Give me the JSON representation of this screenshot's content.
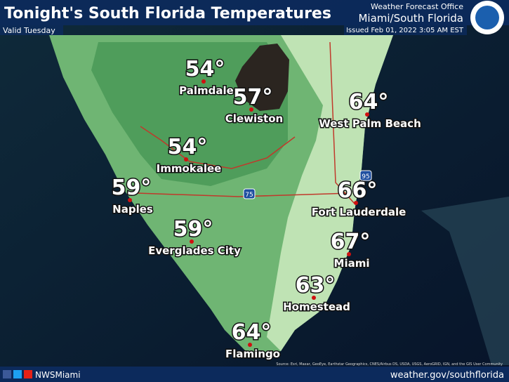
{
  "header": {
    "title": "Tonight's South Florida Temperatures",
    "subtitle": "Valid Tuesday",
    "office": "Weather Forecast Office",
    "region": "Miami/South Florida",
    "issued": "Issued Feb 01, 2022 3:05 AM EST"
  },
  "cities": [
    {
      "name": "Palmdale",
      "temp": "54°"
    },
    {
      "name": "Clewiston",
      "temp": "57°"
    },
    {
      "name": "West Palm Beach",
      "temp": "64°"
    },
    {
      "name": "Immokalee",
      "temp": "54°"
    },
    {
      "name": "Naples",
      "temp": "59°"
    },
    {
      "name": "Fort Lauderdale",
      "temp": "66°"
    },
    {
      "name": "Everglades City",
      "temp": "59°"
    },
    {
      "name": "Miami",
      "temp": "67°"
    },
    {
      "name": "Homestead",
      "temp": "63°"
    },
    {
      "name": "Flamingo",
      "temp": "64°"
    }
  ],
  "highways": [
    "95",
    "75"
  ],
  "footer": {
    "social": "NWSMiami",
    "url": "weather.gov/southflorida",
    "attribution": "Source: Esri, Maxar, GeoEye, Earthstar Geographics, CNES/Airbus DS, USDA, USGS, AeroGRID, IGN, and the GIS User Community"
  }
}
